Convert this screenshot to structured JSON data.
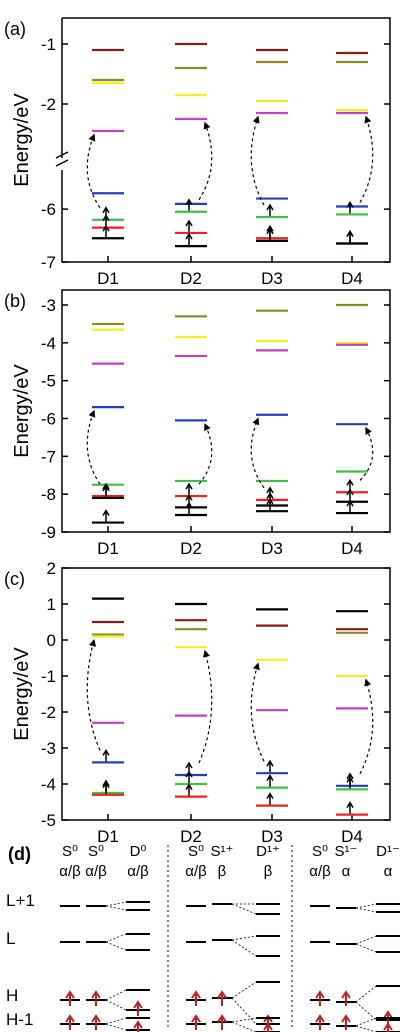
{
  "colors": {
    "maroon": "#8b1a1a",
    "olive": "#8b8b2a",
    "yellow": "#f0f020",
    "magenta": "#c040c0",
    "blue": "#2040c0",
    "green": "#40c040",
    "red": "#f02020",
    "black": "#000000",
    "arrow": "#c02020"
  },
  "chart_data": [
    {
      "panel": "(a)",
      "type": "scatter",
      "ylabel": "Energy/eV",
      "categories": [
        "D1",
        "D2",
        "D3",
        "D4"
      ],
      "axis_break": true,
      "yticks": [
        -1,
        -2,
        -6,
        -7
      ],
      "levels": [
        {
          "color": "maroon",
          "values": [
            -1.1,
            -1.0,
            -1.1,
            -1.15
          ]
        },
        {
          "color": "olive",
          "values": [
            -1.6,
            -1.4,
            -1.3,
            -1.3
          ]
        },
        {
          "color": "yellow",
          "values": [
            -1.65,
            -1.85,
            -1.95,
            -2.1
          ]
        },
        {
          "color": "magenta",
          "values": [
            -2.45,
            -2.25,
            -2.15,
            -2.15
          ]
        },
        {
          "color": "blue",
          "values": [
            -5.7,
            -5.9,
            -5.8,
            -5.95
          ]
        },
        {
          "color": "green",
          "values": [
            -6.2,
            -6.05,
            -6.15,
            -6.1
          ]
        },
        {
          "color": "red",
          "values": [
            -6.35,
            -6.45,
            -6.55,
            -6.65
          ]
        },
        {
          "color": "black",
          "values": [
            -6.55,
            -6.7,
            -6.6,
            -6.65
          ]
        }
      ]
    },
    {
      "panel": "(b)",
      "type": "scatter",
      "ylabel": "Energy/eV",
      "categories": [
        "D1",
        "D2",
        "D3",
        "D4"
      ],
      "ylim": [
        -9,
        -2.5
      ],
      "yticks": [
        -3,
        -4,
        -5,
        -6,
        -7,
        -8,
        -9
      ],
      "levels": [
        {
          "color": "olive",
          "values": [
            -3.5,
            -3.3,
            -3.15,
            -3.0
          ]
        },
        {
          "color": "yellow",
          "values": [
            -3.65,
            -3.85,
            -3.95,
            -4.0
          ]
        },
        {
          "color": "magenta",
          "values": [
            -4.55,
            -4.35,
            -4.2,
            -4.05
          ]
        },
        {
          "color": "blue",
          "values": [
            -5.7,
            -6.05,
            -5.9,
            -6.15
          ]
        },
        {
          "color": "green",
          "values": [
            -7.75,
            -7.65,
            -7.65,
            -7.4
          ]
        },
        {
          "color": "red",
          "values": [
            -8.05,
            -8.05,
            -8.15,
            -7.95
          ]
        },
        {
          "color": "black",
          "values": [
            -8.1,
            -8.35,
            -8.3,
            -8.2
          ]
        },
        {
          "color": "black",
          "values": [
            -8.75,
            -8.55,
            -8.45,
            -8.5
          ]
        }
      ]
    },
    {
      "panel": "(c)",
      "type": "scatter",
      "ylabel": "Energy/eV",
      "categories": [
        "D1",
        "D2",
        "D3",
        "D4"
      ],
      "ylim": [
        -5,
        2
      ],
      "yticks": [
        2,
        1,
        0,
        -1,
        -2,
        -3,
        -4,
        -5
      ],
      "levels": [
        {
          "color": "black",
          "values": [
            1.15,
            1.0,
            0.85,
            0.8
          ]
        },
        {
          "color": "maroon",
          "values": [
            0.5,
            0.55,
            0.4,
            0.3
          ]
        },
        {
          "color": "olive",
          "values": [
            0.15,
            0.3,
            null,
            0.2
          ]
        },
        {
          "color": "yellow",
          "values": [
            0.1,
            -0.2,
            -0.55,
            -1.0
          ]
        },
        {
          "color": "magenta",
          "values": [
            -2.3,
            -2.1,
            -1.95,
            -1.9
          ]
        },
        {
          "color": "blue",
          "values": [
            -3.4,
            -3.75,
            -3.7,
            -4.05
          ]
        },
        {
          "color": "green",
          "values": [
            -4.25,
            -4.0,
            -4.1,
            -4.15
          ]
        },
        {
          "color": "red",
          "values": [
            -4.3,
            -4.35,
            -4.6,
            -4.85
          ]
        }
      ]
    }
  ],
  "panel_d": {
    "label": "(d)",
    "groups": [
      {
        "headers": [
          {
            "state": "S⁰",
            "spin": "α/β"
          },
          {
            "state": "S⁰",
            "spin": "α/β"
          },
          {
            "state": "D⁰",
            "spin": "α/β"
          }
        ]
      },
      {
        "headers": [
          {
            "state": "S⁰",
            "spin": "α/β"
          },
          {
            "state": "S¹⁺",
            "spin": "β"
          },
          {
            "state": "D¹⁺",
            "spin": "β"
          }
        ]
      },
      {
        "headers": [
          {
            "state": "S⁰",
            "spin": "α/β"
          },
          {
            "state": "S¹⁻",
            "spin": "α"
          },
          {
            "state": "D¹⁻",
            "spin": "α"
          }
        ]
      }
    ],
    "row_labels": [
      "L+1",
      "L",
      "H",
      "H-1"
    ]
  }
}
